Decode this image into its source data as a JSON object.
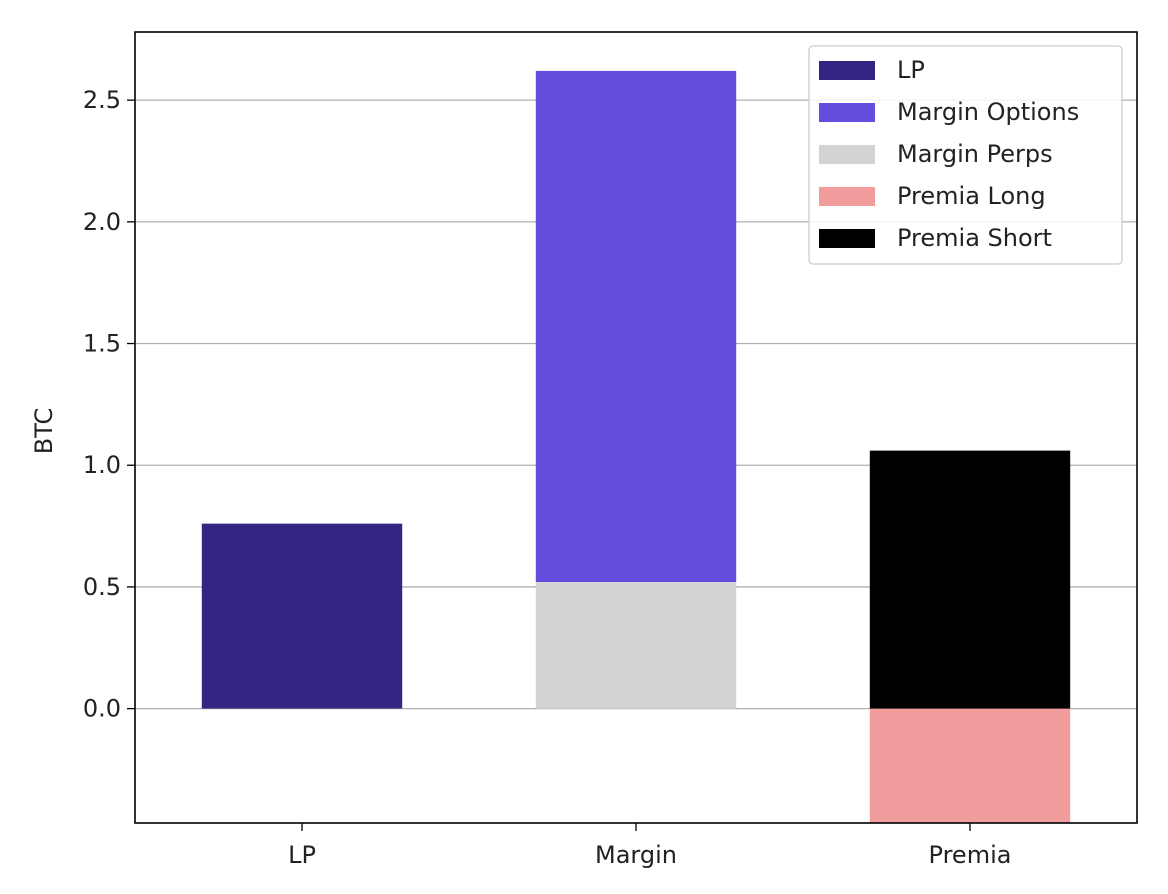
{
  "chart_data": {
    "type": "bar",
    "stacked": true,
    "title": "",
    "xlabel": "",
    "ylabel": "BTC",
    "categories": [
      "LP",
      "Margin",
      "Premia"
    ],
    "ylim": [
      -0.47,
      2.78
    ],
    "yticks": [
      "0.0",
      "0.5",
      "1.0",
      "1.5",
      "2.0",
      "2.5"
    ],
    "grid": {
      "y": true,
      "x": false
    },
    "legend_position": "top-right",
    "series": [
      {
        "name": "LP",
        "color": "#352482",
        "values": [
          0.76,
          0,
          0
        ],
        "base": [
          0,
          0,
          0
        ]
      },
      {
        "name": "Margin Options",
        "color": "#664ddd",
        "values": [
          0,
          2.1,
          0
        ],
        "base": [
          0,
          0.52,
          0
        ]
      },
      {
        "name": "Margin Perps",
        "color": "#d3d3d3",
        "values": [
          0,
          0.52,
          0
        ],
        "base": [
          0,
          0,
          0
        ]
      },
      {
        "name": "Premia Long",
        "color": "#f19d9d",
        "values": [
          0,
          0,
          -0.47
        ],
        "base": [
          0,
          0,
          0
        ]
      },
      {
        "name": "Premia Short",
        "color": "#000000",
        "values": [
          0,
          0,
          1.06
        ],
        "base": [
          0,
          0,
          0
        ]
      }
    ]
  }
}
